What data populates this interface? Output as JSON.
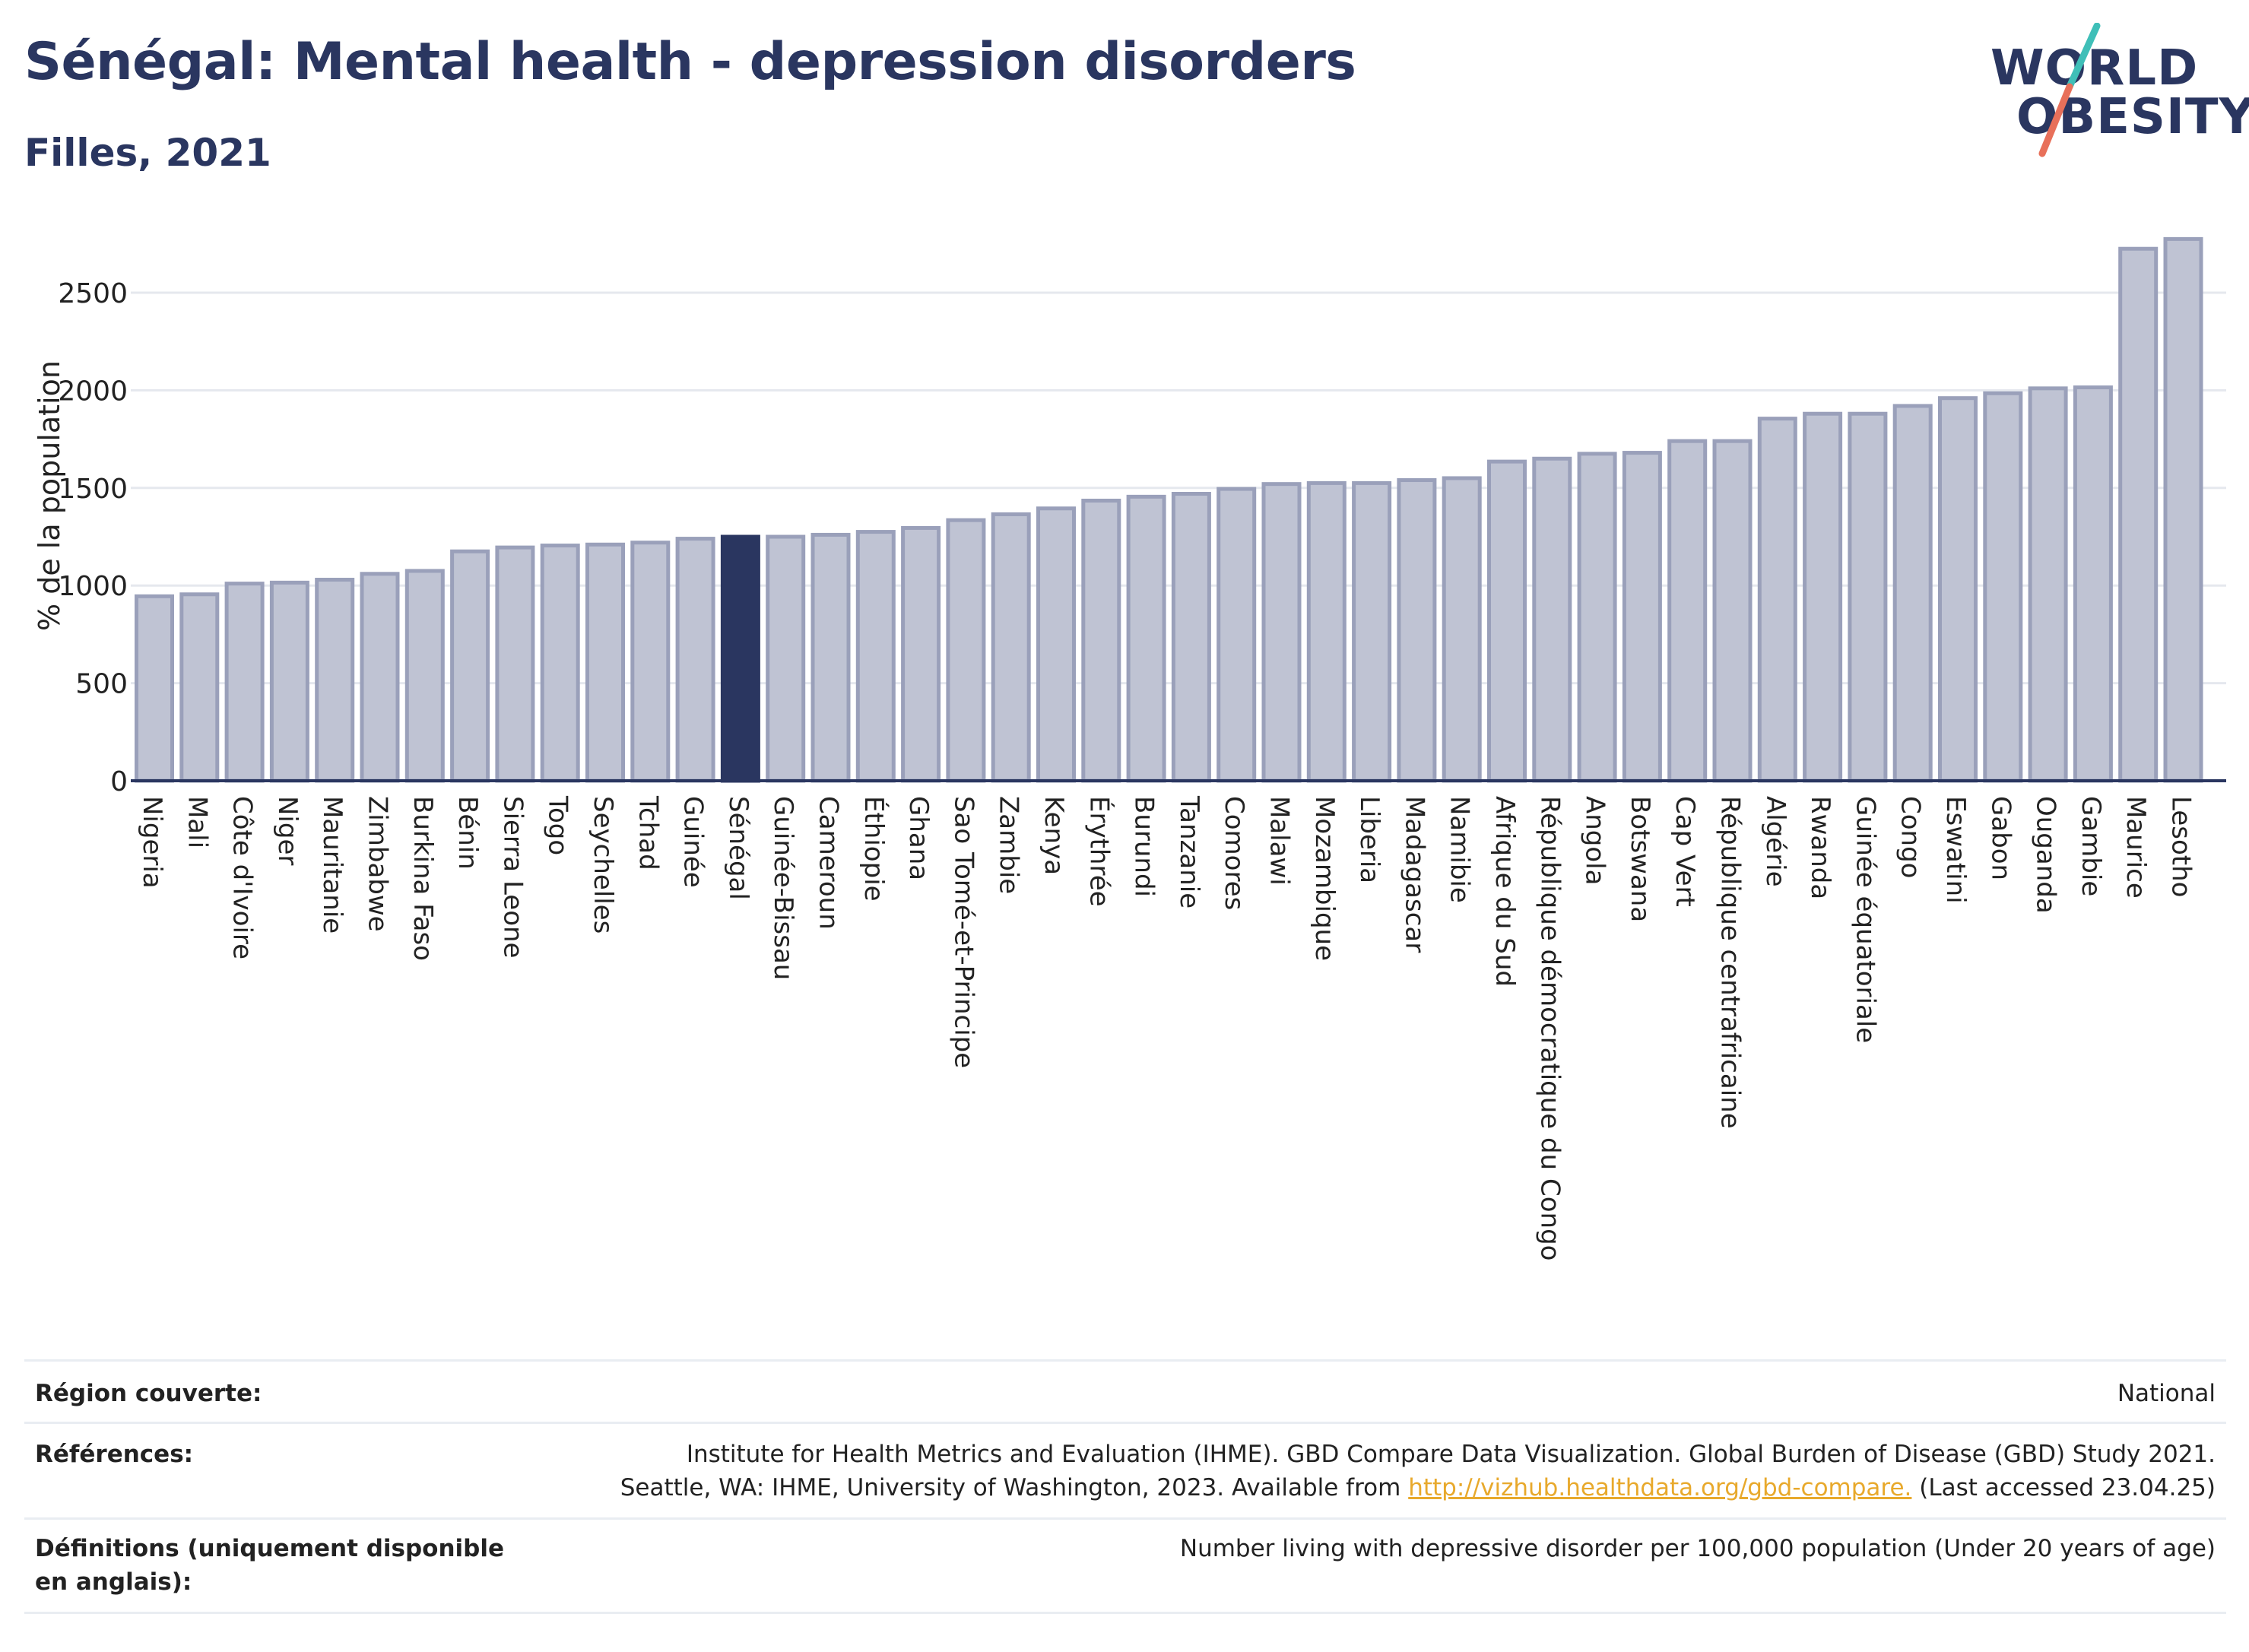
{
  "header": {
    "title": "Sénégal: Mental health - depression disorders",
    "subtitle": "Filles, 2021"
  },
  "logo": {
    "line1": "WORLD",
    "line2": "OBESITY",
    "colors": {
      "text": "#2a3660",
      "slash_top": "#3fbfb8",
      "slash_bottom": "#e8705a"
    }
  },
  "colors": {
    "bar_fill": "#bfc3d3",
    "bar_stroke": "#9aa0ba",
    "highlight": "#2a3660",
    "grid": "#e5e8ee",
    "axis": "#2a3660",
    "link": "#e8a92c"
  },
  "chart_data": {
    "type": "bar",
    "ylabel": "% de la population",
    "ylim": [
      0,
      2800
    ],
    "yticks": [
      0,
      500,
      1000,
      1500,
      2000,
      2500
    ],
    "grid": true,
    "highlight": "Sénégal",
    "categories": [
      "Nigeria",
      "Mali",
      "Côte d'Ivoire",
      "Niger",
      "Mauritanie",
      "Zimbabwe",
      "Burkina Faso",
      "Bénin",
      "Sierra Leone",
      "Togo",
      "Seychelles",
      "Tchad",
      "Guinée",
      "Sénégal",
      "Guinée-Bissau",
      "Cameroun",
      "Éthiopie",
      "Ghana",
      "Sao Tomé-et-Principe",
      "Zambie",
      "Kenya",
      "Érythrée",
      "Burundi",
      "Tanzanie",
      "Comores",
      "Malawi",
      "Mozambique",
      "Liberia",
      "Madagascar",
      "Namibie",
      "Afrique du Sud",
      "République démocratique du Congo",
      "Angola",
      "Botswana",
      "Cap Vert",
      "République centrafricaine",
      "Algérie",
      "Rwanda",
      "Guinée équatoriale",
      "Congo",
      "Eswatini",
      "Gabon",
      "Ouganda",
      "Gambie",
      "Maurice",
      "Lesotho"
    ],
    "values": [
      945,
      955,
      1010,
      1015,
      1030,
      1060,
      1075,
      1175,
      1195,
      1205,
      1210,
      1220,
      1240,
      1250,
      1250,
      1260,
      1275,
      1295,
      1335,
      1365,
      1395,
      1435,
      1455,
      1470,
      1495,
      1520,
      1525,
      1525,
      1540,
      1550,
      1635,
      1650,
      1675,
      1680,
      1740,
      1740,
      1855,
      1880,
      1880,
      1920,
      1960,
      1985,
      2010,
      2015,
      2725,
      2775
    ]
  },
  "info": {
    "region_label": "Région couverte:",
    "region_value": "National",
    "references_label": "Références:",
    "references_line1": "Institute for Health Metrics and Evaluation (IHME). GBD Compare Data Visualization. Global Burden of Disease (GBD) Study 2021.",
    "references_line2_prefix": "Seattle, WA: IHME, University of Washington, 2023. Available from ",
    "references_link": "http://vizhub.healthdata.org/gbd-compare.",
    "references_line2_suffix": " (Last accessed 23.04.25)",
    "definitions_label": "Définitions (uniquement disponible en anglais):",
    "definitions_value": "Number living with depressive disorder per 100,000 population (Under 20 years of age)"
  }
}
